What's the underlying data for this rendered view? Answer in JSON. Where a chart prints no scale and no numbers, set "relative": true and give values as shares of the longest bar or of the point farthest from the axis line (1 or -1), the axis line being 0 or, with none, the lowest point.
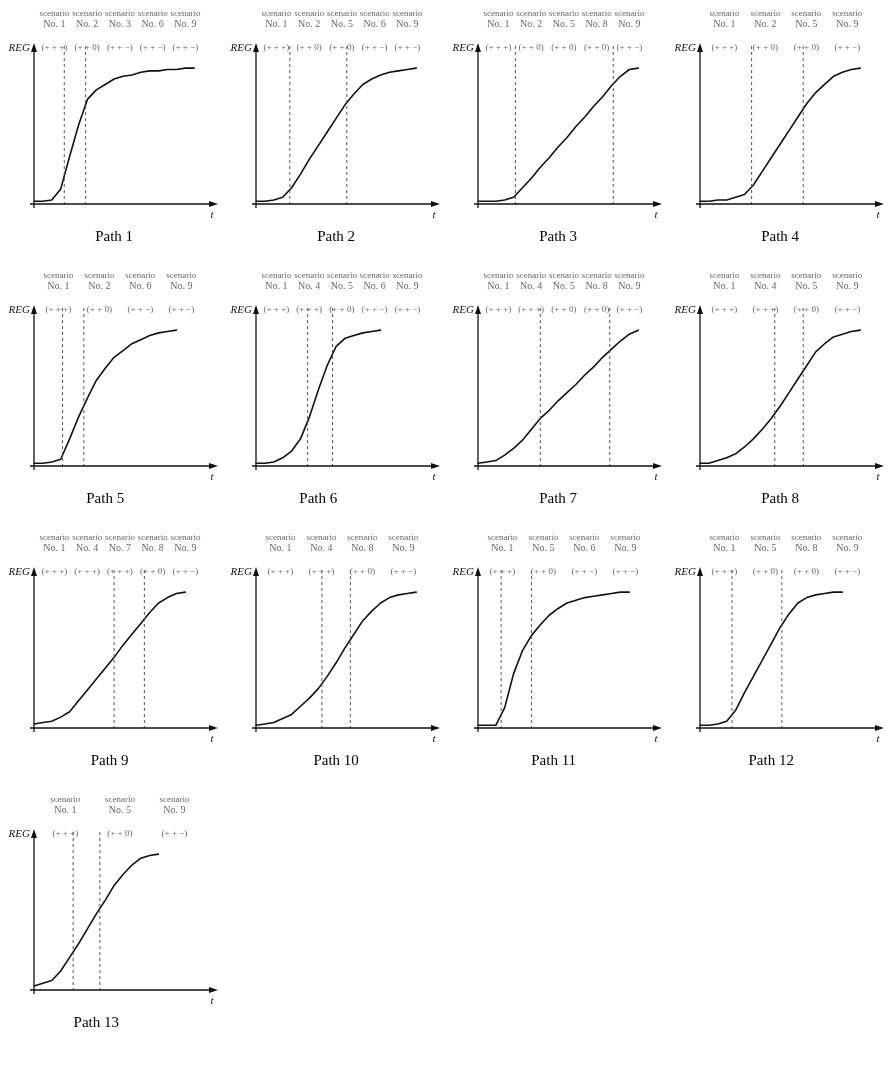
{
  "chart_data": [
    {
      "type": "line",
      "title": "Path 1",
      "xlabel": "t",
      "ylabel": "REG",
      "relative": true,
      "tick_labels": false,
      "grid": false,
      "legend": false,
      "marker": "none",
      "color": "#111111",
      "categories": [
        null,
        null,
        null,
        null,
        null,
        null,
        null,
        null,
        null,
        null,
        null,
        null,
        null,
        null,
        null,
        null,
        null,
        null,
        null
      ],
      "values": [
        0.02,
        0.02,
        0.03,
        0.11,
        0.35,
        0.58,
        0.77,
        0.84,
        0.88,
        0.92,
        0.94,
        0.95,
        0.97,
        0.98,
        0.98,
        0.99,
        0.99,
        1,
        1
      ],
      "line_style": "solid",
      "annotations": [
        "scenario No. 1",
        "(+ + +)",
        "scenario No. 2",
        "(+ + 0)",
        "scenario No. 3",
        "(+ + −)",
        "scenario No. 6",
        "(+ + −)",
        "scenario No. 9",
        "(+ + −)"
      ]
    },
    {
      "type": "line",
      "title": "Path 2",
      "xlabel": "t",
      "ylabel": "REG",
      "relative": true,
      "tick_labels": false,
      "grid": false,
      "legend": false,
      "marker": "none",
      "color": "#111111",
      "categories": [
        null,
        null,
        null,
        null,
        null,
        null,
        null,
        null,
        null,
        null,
        null,
        null,
        null,
        null,
        null,
        null,
        null,
        null,
        null
      ],
      "values": [
        0.02,
        0.02,
        0.03,
        0.05,
        0.12,
        0.22,
        0.33,
        0.43,
        0.53,
        0.63,
        0.73,
        0.81,
        0.88,
        0.92,
        0.95,
        0.97,
        0.98,
        0.99,
        1
      ],
      "line_style": "solid",
      "annotations": [
        "scenario No. 1",
        "(+ + +)",
        "scenario No. 2",
        "(+ + 0)",
        "scenario No. 5",
        "(+ + 0)",
        "scenario No. 6",
        "(+ + −)",
        "scenario No. 9",
        "(+ + −)"
      ]
    },
    {
      "type": "line",
      "title": "Path 3",
      "xlabel": "t",
      "ylabel": "REG",
      "relative": true,
      "tick_labels": false,
      "grid": false,
      "legend": false,
      "marker": "none",
      "color": "#111111",
      "categories": [
        null,
        null,
        null,
        null,
        null,
        null,
        null,
        null,
        null,
        null,
        null,
        null,
        null,
        null,
        null,
        null,
        null,
        null,
        null
      ],
      "values": [
        0.02,
        0.02,
        0.02,
        0.03,
        0.05,
        0.12,
        0.19,
        0.27,
        0.34,
        0.42,
        0.49,
        0.57,
        0.64,
        0.72,
        0.79,
        0.87,
        0.94,
        0.99,
        1
      ],
      "line_style": "solid",
      "annotations": [
        "scenario No. 1",
        "(+ + +)",
        "scenario No. 2",
        "(+ + 0)",
        "scenario No. 5",
        "(+ + 0)",
        "scenario No. 8",
        "(+ + 0)",
        "scenario No. 9",
        "(+ + −)"
      ]
    },
    {
      "type": "line",
      "title": "Path 4",
      "xlabel": "t",
      "ylabel": "REG",
      "relative": true,
      "tick_labels": false,
      "grid": false,
      "legend": false,
      "marker": "none",
      "color": "#111111",
      "categories": [
        null,
        null,
        null,
        null,
        null,
        null,
        null,
        null,
        null,
        null,
        null,
        null,
        null,
        null,
        null,
        null,
        null,
        null,
        null
      ],
      "values": [
        0.02,
        0.02,
        0.03,
        0.03,
        0.05,
        0.07,
        0.14,
        0.24,
        0.34,
        0.44,
        0.54,
        0.64,
        0.74,
        0.82,
        0.88,
        0.94,
        0.97,
        0.99,
        1
      ],
      "line_style": "solid",
      "annotations": [
        "scenario No. 1",
        "(+ + +)",
        "scenario No. 2",
        "(+ + 0)",
        "scenario No. 5",
        "(+ + 0)",
        "scenario No. 9",
        "(+ + −)"
      ]
    },
    {
      "type": "line",
      "title": "Path 5",
      "xlabel": "t",
      "ylabel": "REG",
      "relative": true,
      "tick_labels": false,
      "grid": false,
      "legend": false,
      "marker": "none",
      "color": "#111111",
      "categories": [
        null,
        null,
        null,
        null,
        null,
        null,
        null,
        null,
        null,
        null,
        null,
        null,
        null,
        null,
        null,
        null,
        null
      ],
      "values": [
        0.02,
        0.02,
        0.03,
        0.05,
        0.2,
        0.36,
        0.5,
        0.63,
        0.72,
        0.8,
        0.85,
        0.9,
        0.93,
        0.96,
        0.98,
        0.99,
        1
      ],
      "line_style": "solid",
      "annotations": [
        "scenario No. 1",
        "(+ + +)",
        "scenario No. 2",
        "(+ + 0)",
        "scenario No. 6",
        "(+ + −)",
        "scenario No. 9",
        "(+ + −)"
      ]
    },
    {
      "type": "line",
      "title": "Path 6",
      "xlabel": "t",
      "ylabel": "REG",
      "relative": true,
      "tick_labels": false,
      "grid": false,
      "legend": false,
      "marker": "none",
      "color": "#111111",
      "categories": [
        null,
        null,
        null,
        null,
        null,
        null,
        null,
        null,
        null,
        null,
        null,
        null,
        null,
        null,
        null
      ],
      "values": [
        0.02,
        0.02,
        0.03,
        0.06,
        0.11,
        0.2,
        0.36,
        0.56,
        0.74,
        0.88,
        0.94,
        0.96,
        0.98,
        0.99,
        1
      ],
      "line_style": "solid",
      "annotations": [
        "scenario No. 1",
        "(+ + +)",
        "scenario No. 4",
        "(+ + +)",
        "scenario No. 5",
        "(+ + 0)",
        "scenario No. 6",
        "(+ + −)",
        "scenario No. 9",
        "(+ + −)"
      ]
    },
    {
      "type": "line",
      "title": "Path 7",
      "xlabel": "t",
      "ylabel": "REG",
      "relative": true,
      "tick_labels": false,
      "grid": false,
      "legend": false,
      "marker": "none",
      "color": "#111111",
      "categories": [
        null,
        null,
        null,
        null,
        null,
        null,
        null,
        null,
        null,
        null,
        null,
        null,
        null,
        null,
        null,
        null,
        null,
        null,
        null
      ],
      "values": [
        0.02,
        0.03,
        0.04,
        0.08,
        0.13,
        0.19,
        0.27,
        0.35,
        0.41,
        0.48,
        0.54,
        0.6,
        0.67,
        0.73,
        0.8,
        0.86,
        0.92,
        0.97,
        1
      ],
      "line_style": "solid",
      "annotations": [
        "scenario No. 1",
        "(+ + +)",
        "scenario No. 4",
        "(+ + +)",
        "scenario No. 5",
        "(+ + 0)",
        "scenario No. 8",
        "(+ + 0)",
        "scenario No. 9",
        "(+ + −)"
      ]
    },
    {
      "type": "line",
      "title": "Path 8",
      "xlabel": "t",
      "ylabel": "REG",
      "relative": true,
      "tick_labels": false,
      "grid": false,
      "legend": false,
      "marker": "none",
      "color": "#111111",
      "categories": [
        null,
        null,
        null,
        null,
        null,
        null,
        null,
        null,
        null,
        null,
        null,
        null,
        null,
        null,
        null,
        null,
        null,
        null,
        null
      ],
      "values": [
        0.02,
        0.02,
        0.04,
        0.06,
        0.09,
        0.14,
        0.2,
        0.27,
        0.35,
        0.44,
        0.54,
        0.64,
        0.74,
        0.84,
        0.9,
        0.95,
        0.97,
        0.99,
        1
      ],
      "line_style": "solid",
      "annotations": [
        "scenario No. 1",
        "(+ + +)",
        "scenario No. 4",
        "(+ + +)",
        "scenario No. 5",
        "(+ + 0)",
        "scenario No. 9",
        "(+ + −)"
      ]
    },
    {
      "type": "line",
      "title": "Path 9",
      "xlabel": "t",
      "ylabel": "REG",
      "relative": true,
      "tick_labels": false,
      "grid": false,
      "legend": false,
      "marker": "none",
      "color": "#111111",
      "categories": [
        null,
        null,
        null,
        null,
        null,
        null,
        null,
        null,
        null,
        null,
        null,
        null,
        null,
        null,
        null,
        null,
        null,
        null
      ],
      "values": [
        0.03,
        0.04,
        0.05,
        0.08,
        0.12,
        0.2,
        0.28,
        0.36,
        0.44,
        0.52,
        0.61,
        0.69,
        0.77,
        0.85,
        0.92,
        0.96,
        0.99,
        1
      ],
      "line_style": "solid",
      "annotations": [
        "scenario No. 1",
        "(+ + +)",
        "scenario No. 4",
        "(+ + +)",
        "scenario No. 7",
        "(+ + +)",
        "scenario No. 8",
        "(+ + 0)",
        "scenario No. 9",
        "(+ + −)"
      ]
    },
    {
      "type": "line",
      "title": "Path 10",
      "xlabel": "t",
      "ylabel": "REG",
      "relative": true,
      "tick_labels": false,
      "grid": false,
      "legend": false,
      "marker": "none",
      "color": "#111111",
      "categories": [
        null,
        null,
        null,
        null,
        null,
        null,
        null,
        null,
        null,
        null,
        null,
        null,
        null,
        null,
        null,
        null,
        null,
        null,
        null
      ],
      "values": [
        0.02,
        0.03,
        0.04,
        0.07,
        0.1,
        0.16,
        0.22,
        0.29,
        0.38,
        0.48,
        0.59,
        0.69,
        0.79,
        0.86,
        0.92,
        0.96,
        0.98,
        0.99,
        1
      ],
      "line_style": "solid",
      "annotations": [
        "scenario No. 1",
        "(+ + +)",
        "scenario No. 4",
        "(+ + +)",
        "scenario No. 8",
        "(+ + 0)",
        "scenario No. 9",
        "(+ + −)"
      ]
    },
    {
      "type": "line",
      "title": "Path 11",
      "xlabel": "t",
      "ylabel": "REG",
      "relative": true,
      "tick_labels": false,
      "grid": false,
      "legend": false,
      "marker": "none",
      "color": "#111111",
      "categories": [
        null,
        null,
        null,
        null,
        null,
        null,
        null,
        null,
        null,
        null,
        null,
        null,
        null,
        null,
        null,
        null,
        null,
        null
      ],
      "values": [
        0.02,
        0.02,
        0.02,
        0.15,
        0.4,
        0.57,
        0.68,
        0.76,
        0.83,
        0.88,
        0.92,
        0.94,
        0.96,
        0.97,
        0.98,
        0.99,
        1,
        1
      ],
      "line_style": "solid",
      "annotations": [
        "scenario No. 1",
        "(+ + +)",
        "scenario No. 5",
        "(+ + 0)",
        "scenario No. 6",
        "(+ + −)",
        "scenario No. 9",
        "(+ + −)"
      ]
    },
    {
      "type": "line",
      "title": "Path 12",
      "xlabel": "t",
      "ylabel": "REG",
      "relative": true,
      "tick_labels": false,
      "grid": false,
      "legend": false,
      "marker": "none",
      "color": "#111111",
      "categories": [
        null,
        null,
        null,
        null,
        null,
        null,
        null,
        null,
        null,
        null,
        null,
        null,
        null,
        null,
        null,
        null,
        null
      ],
      "values": [
        0.02,
        0.02,
        0.03,
        0.05,
        0.13,
        0.26,
        0.38,
        0.5,
        0.62,
        0.74,
        0.84,
        0.92,
        0.96,
        0.98,
        0.99,
        1,
        1
      ],
      "line_style": "solid",
      "annotations": [
        "scenario No. 1",
        "(+ + +)",
        "scenario No. 5",
        "(+ + 0)",
        "scenario No. 8",
        "(+ + 0)",
        "scenario No. 9",
        "(+ + −)"
      ]
    },
    {
      "type": "line",
      "title": "Path 13",
      "xlabel": "t",
      "ylabel": "REG",
      "relative": true,
      "tick_labels": false,
      "grid": false,
      "legend": false,
      "marker": "none",
      "color": "#111111",
      "categories": [
        null,
        null,
        null,
        null,
        null,
        null,
        null,
        null,
        null,
        null,
        null,
        null,
        null,
        null,
        null
      ],
      "values": [
        0.03,
        0.05,
        0.07,
        0.14,
        0.24,
        0.34,
        0.45,
        0.56,
        0.66,
        0.77,
        0.85,
        0.92,
        0.97,
        0.99,
        1
      ],
      "line_style": "solid",
      "annotations": [
        "scenario No. 1",
        "(+ + +)",
        "scenario No. 5",
        "(+ + 0)",
        "scenario No. 9",
        "(+ + −)"
      ]
    }
  ]
}
